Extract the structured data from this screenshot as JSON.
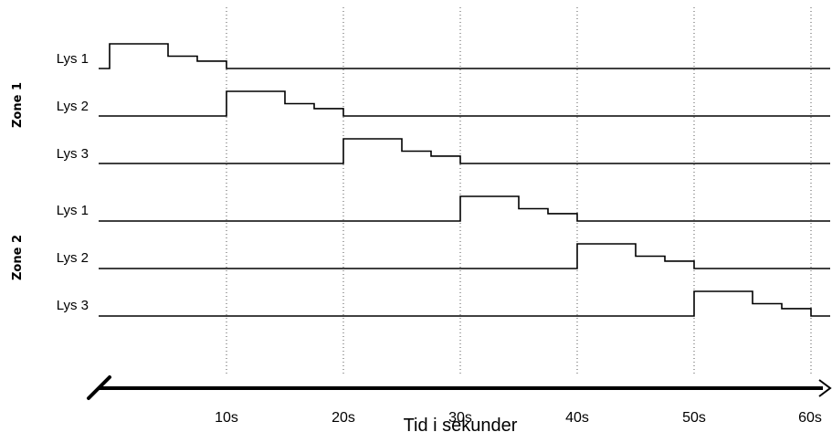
{
  "zones": [
    {
      "label": "Zone 1",
      "lights": [
        {
          "label": "Lys 1",
          "on_from": 0,
          "off_at": 10
        },
        {
          "label": "Lys 2",
          "on_from": 10,
          "off_at": 20
        },
        {
          "label": "Lys 3",
          "on_from": 20,
          "off_at": 30
        }
      ]
    },
    {
      "label": "Zone 2",
      "lights": [
        {
          "label": "Lys 1",
          "on_from": 30,
          "off_at": 40
        },
        {
          "label": "Lys 2",
          "on_from": 40,
          "off_at": 50
        },
        {
          "label": "Lys 3",
          "on_from": 50,
          "off_at": 60
        }
      ]
    }
  ],
  "axis": {
    "title": "Tid i sekunder",
    "ticks": [
      "10s",
      "20s",
      "30s",
      "40s",
      "50s",
      "60s"
    ],
    "tick_values": [
      10,
      20,
      30,
      40,
      50,
      60
    ]
  },
  "dimming_steps": [
    1.0,
    0.5,
    0.3
  ]
}
